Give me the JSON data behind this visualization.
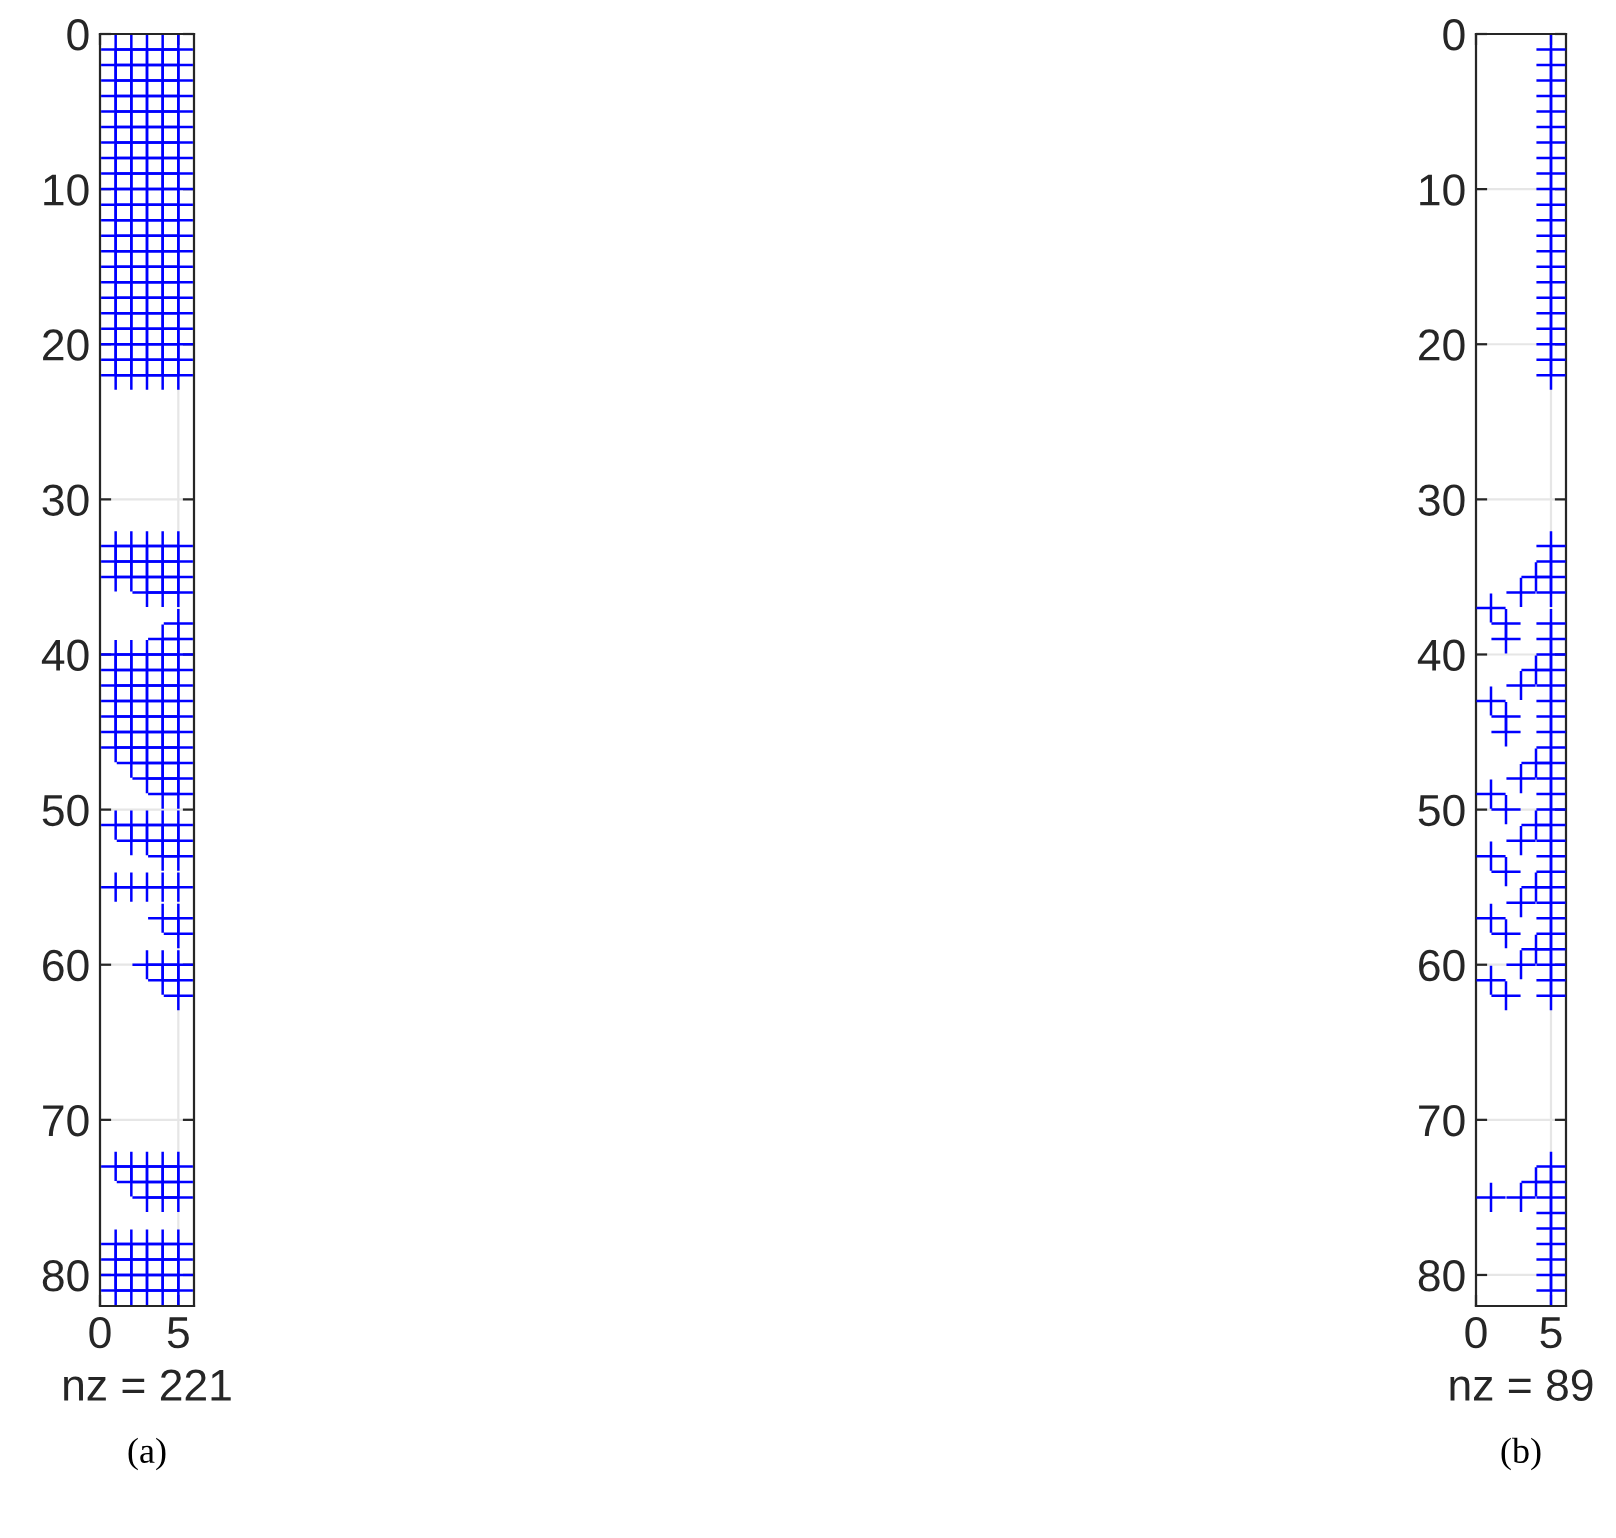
{
  "chart_data": [
    {
      "type": "scatter",
      "xlabel": "nz = 221",
      "annotations": [
        "(a)"
      ],
      "xlim": [
        0,
        6
      ],
      "ylim": [
        82,
        0
      ],
      "xticks": [
        0,
        5
      ],
      "yticks": [
        0,
        10,
        20,
        30,
        40,
        50,
        60,
        70,
        80
      ],
      "grid": true,
      "marker": "cross",
      "series": [
        {
          "color": "#0000ff",
          "x": [
            1,
            2,
            3,
            4,
            5,
            1,
            2,
            3,
            4,
            5,
            1,
            2,
            3,
            4,
            5,
            1,
            2,
            3,
            4,
            5,
            1,
            2,
            3,
            4,
            5,
            1,
            2,
            3,
            4,
            5,
            1,
            2,
            3,
            4,
            5,
            1,
            2,
            3,
            4,
            5,
            1,
            2,
            3,
            4,
            5,
            1,
            2,
            3,
            4,
            5,
            1,
            2,
            3,
            4,
            5,
            1,
            2,
            3,
            4,
            5,
            1,
            2,
            3,
            4,
            5,
            1,
            2,
            3,
            4,
            5,
            1,
            2,
            3,
            4,
            5,
            1,
            2,
            3,
            4,
            5,
            1,
            2,
            3,
            4,
            5,
            1,
            2,
            3,
            4,
            5,
            1,
            2,
            3,
            4,
            5,
            1,
            2,
            3,
            4,
            5,
            1,
            2,
            3,
            4,
            5,
            1,
            2,
            3,
            4,
            5,
            1,
            2,
            3,
            4,
            5,
            1,
            2,
            3,
            4,
            5,
            1,
            2,
            3,
            4,
            5,
            3,
            4,
            5,
            5,
            4,
            5,
            1,
            2,
            3,
            4,
            5,
            1,
            2,
            3,
            4,
            5,
            1,
            2,
            3,
            4,
            5,
            1,
            2,
            3,
            4,
            5,
            1,
            2,
            3,
            4,
            5,
            1,
            2,
            3,
            4,
            5,
            1,
            2,
            3,
            4,
            5,
            2,
            3,
            4,
            5,
            3,
            4,
            5,
            4,
            5,
            1,
            2,
            3,
            4,
            5,
            2,
            3,
            4,
            5,
            4,
            5,
            1,
            2,
            3,
            4,
            5,
            4,
            5,
            5,
            3,
            4,
            5,
            4,
            5,
            5,
            1,
            2,
            3,
            4,
            5,
            2,
            3,
            4,
            5,
            3,
            4,
            5,
            1,
            2,
            3,
            4,
            5,
            1,
            2,
            3,
            4,
            5,
            1,
            2,
            3,
            4,
            5,
            1,
            2,
            3,
            4,
            5
          ],
          "values": [
            1,
            1,
            1,
            1,
            1,
            2,
            2,
            2,
            2,
            2,
            3,
            3,
            3,
            3,
            3,
            4,
            4,
            4,
            4,
            4,
            5,
            5,
            5,
            5,
            5,
            6,
            6,
            6,
            6,
            6,
            7,
            7,
            7,
            7,
            7,
            8,
            8,
            8,
            8,
            8,
            9,
            9,
            9,
            9,
            9,
            10,
            10,
            10,
            10,
            10,
            11,
            11,
            11,
            11,
            11,
            12,
            12,
            12,
            12,
            12,
            13,
            13,
            13,
            13,
            13,
            14,
            14,
            14,
            14,
            14,
            15,
            15,
            15,
            15,
            15,
            16,
            16,
            16,
            16,
            16,
            17,
            17,
            17,
            17,
            17,
            18,
            18,
            18,
            18,
            18,
            19,
            19,
            19,
            19,
            19,
            20,
            20,
            20,
            20,
            20,
            21,
            21,
            21,
            21,
            21,
            22,
            22,
            22,
            22,
            22,
            33,
            33,
            33,
            33,
            33,
            34,
            34,
            34,
            34,
            34,
            35,
            35,
            35,
            35,
            35,
            36,
            36,
            36,
            38,
            39,
            39,
            40,
            40,
            40,
            40,
            40,
            41,
            41,
            41,
            41,
            41,
            42,
            42,
            42,
            42,
            42,
            43,
            43,
            43,
            43,
            43,
            44,
            44,
            44,
            44,
            44,
            45,
            45,
            45,
            45,
            45,
            46,
            46,
            46,
            46,
            46,
            47,
            47,
            47,
            47,
            48,
            48,
            48,
            49,
            49,
            51,
            51,
            51,
            51,
            51,
            52,
            52,
            52,
            52,
            53,
            53,
            55,
            55,
            55,
            55,
            55,
            57,
            57,
            58,
            60,
            60,
            60,
            61,
            61,
            62,
            73,
            73,
            73,
            73,
            73,
            74,
            74,
            74,
            74,
            75,
            75,
            75,
            78,
            78,
            78,
            78,
            78,
            79,
            79,
            79,
            79,
            79,
            80,
            80,
            80,
            80,
            80,
            81,
            81,
            81,
            81,
            81
          ]
        }
      ]
    },
    {
      "type": "scatter",
      "xlabel": "nz = 89",
      "annotations": [
        "(b)"
      ],
      "xlim": [
        0,
        6
      ],
      "ylim": [
        82,
        0
      ],
      "xticks": [
        0,
        5
      ],
      "yticks": [
        0,
        10,
        20,
        30,
        40,
        50,
        60,
        70,
        80
      ],
      "grid": true,
      "marker": "cross",
      "series": [
        {
          "color": "#0000ff",
          "x": [
            5,
            5,
            5,
            5,
            5,
            5,
            5,
            5,
            5,
            5,
            5,
            5,
            5,
            5,
            5,
            5,
            5,
            5,
            5,
            5,
            5,
            5,
            5,
            5,
            4,
            5,
            3,
            5,
            1,
            2,
            5,
            2,
            5,
            5,
            4,
            5,
            3,
            5,
            1,
            5,
            2,
            5,
            2,
            5,
            5,
            4,
            5,
            3,
            5,
            1,
            5,
            2,
            5,
            4,
            5,
            3,
            5,
            1,
            5,
            2,
            5,
            4,
            5,
            3,
            5,
            1,
            5,
            2,
            5,
            4,
            5,
            3,
            5,
            1,
            5,
            2,
            5,
            5,
            4,
            5,
            1,
            3,
            5,
            5,
            5,
            5,
            5,
            5,
            5
          ],
          "values": [
            1,
            2,
            3,
            4,
            5,
            6,
            7,
            8,
            9,
            10,
            11,
            12,
            13,
            14,
            15,
            16,
            17,
            18,
            19,
            20,
            21,
            22,
            33,
            34,
            35,
            35,
            36,
            36,
            37,
            38,
            38,
            39,
            39,
            40,
            41,
            41,
            42,
            42,
            43,
            43,
            44,
            44,
            45,
            45,
            46,
            47,
            47,
            48,
            48,
            49,
            49,
            50,
            50,
            51,
            51,
            52,
            52,
            53,
            53,
            54,
            54,
            55,
            55,
            56,
            56,
            57,
            57,
            58,
            58,
            59,
            59,
            60,
            60,
            61,
            61,
            62,
            62,
            73,
            74,
            74,
            75,
            75,
            75,
            76,
            77,
            78,
            79,
            80,
            81
          ]
        }
      ]
    }
  ]
}
